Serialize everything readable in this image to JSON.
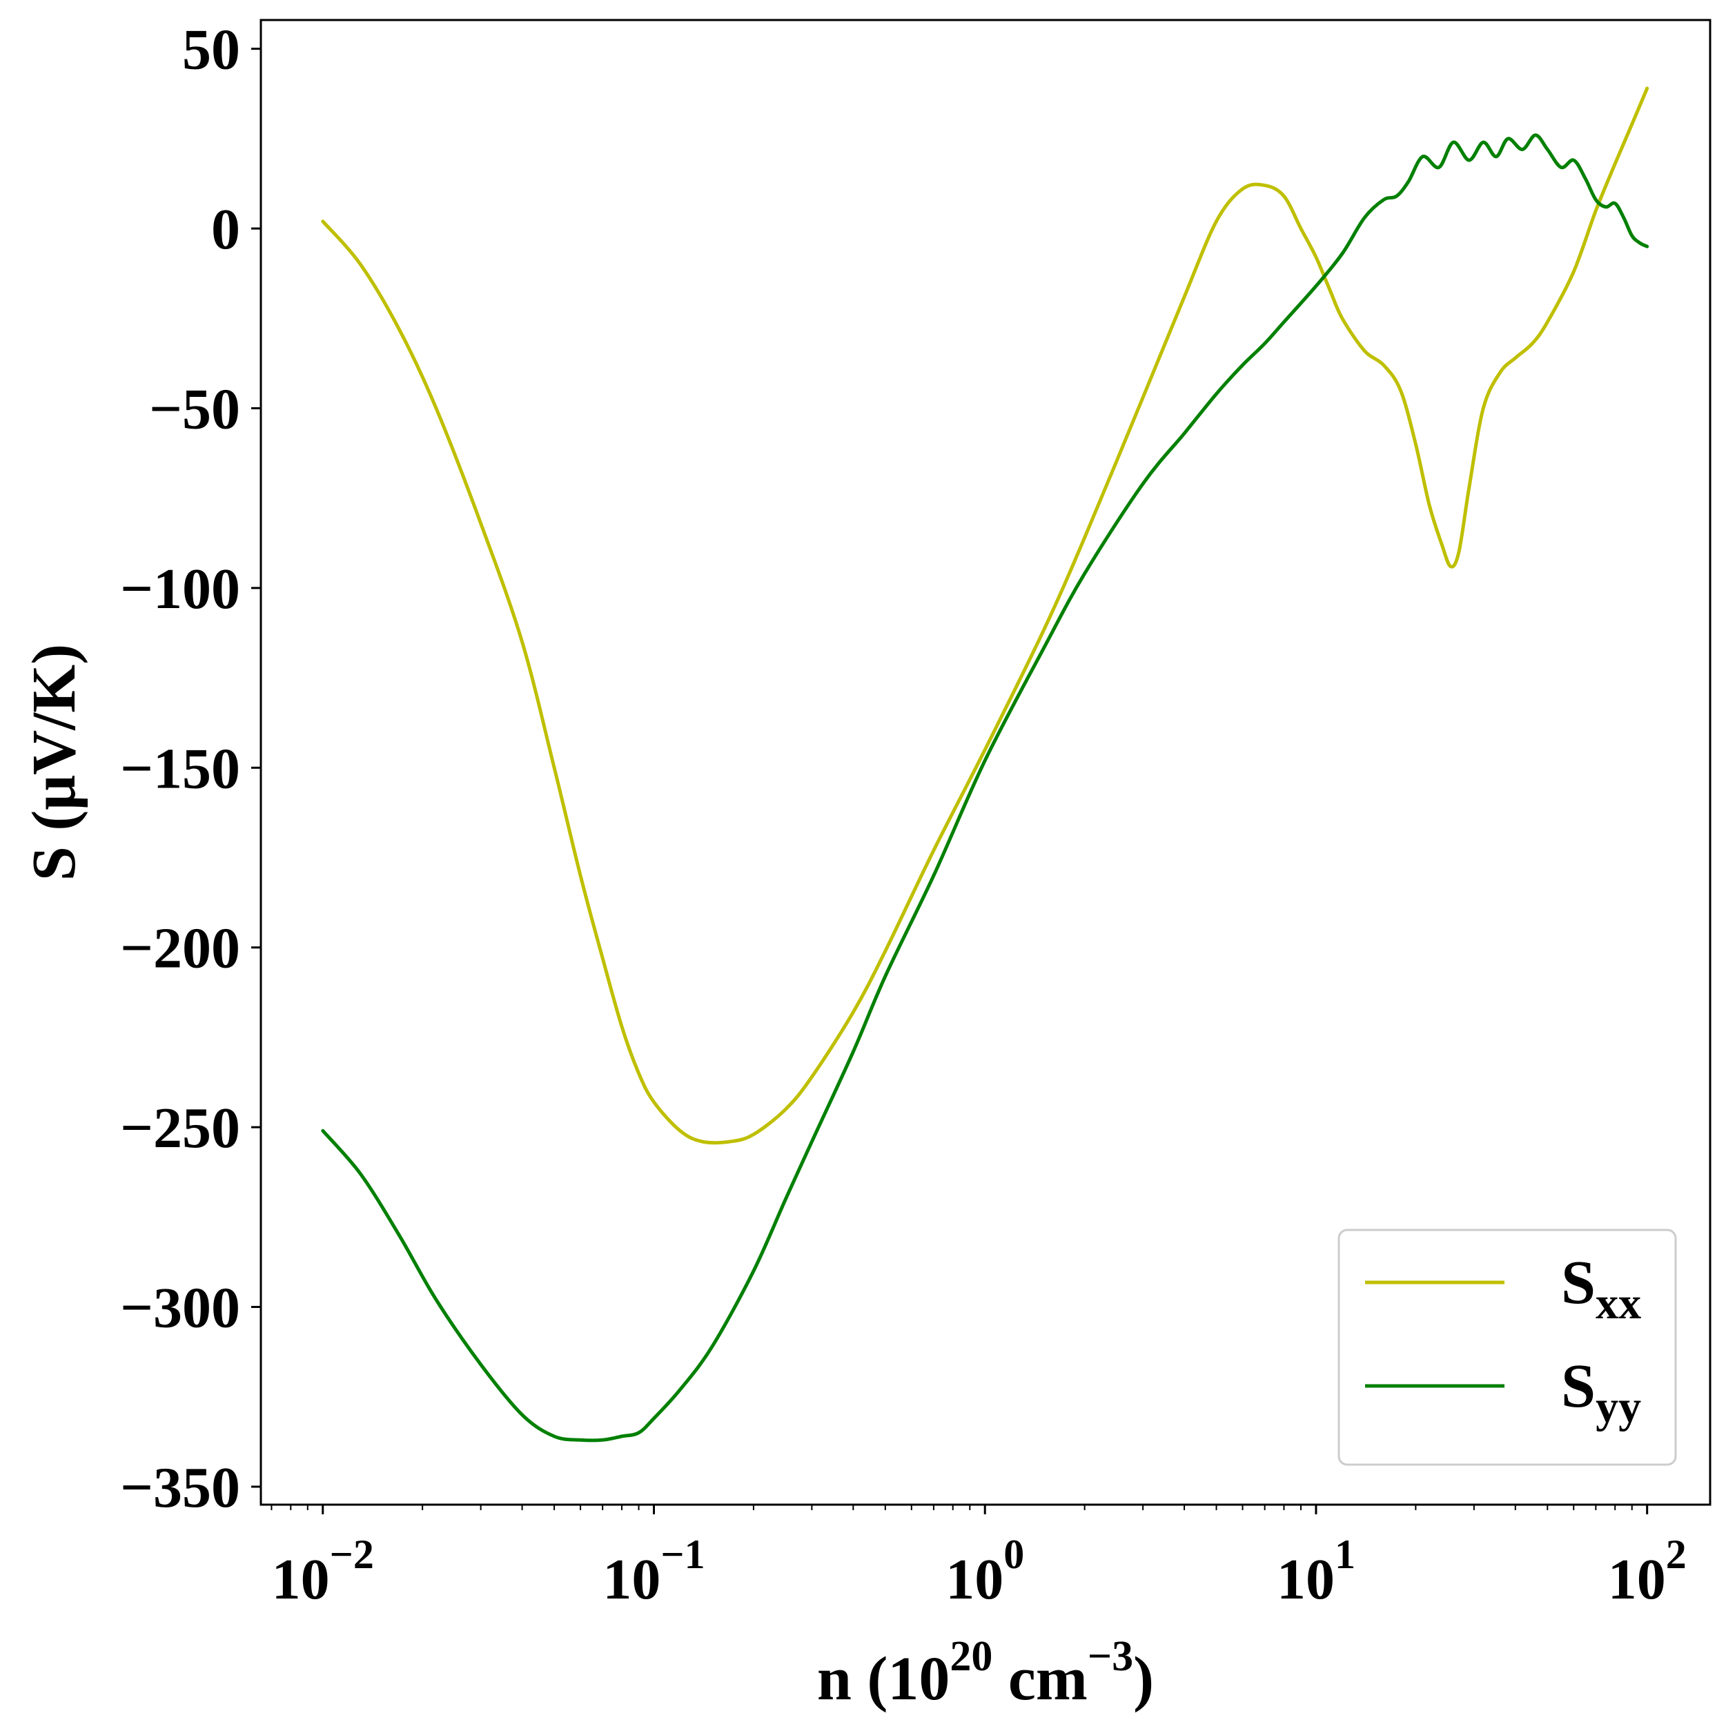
{
  "chart_data": {
    "type": "line",
    "xscale": "log",
    "xlim": [
      0.0065,
      155
    ],
    "ylim": [
      -355,
      58
    ],
    "xlabel": {
      "base": "n (10",
      "sup1": "20",
      "mid": " cm",
      "sup2": "−3",
      "end": ")"
    },
    "ylabel": "S (μV/K)",
    "grid": false,
    "legend_position": "lower-right",
    "y_ticks": [
      {
        "value": 50,
        "label": "50"
      },
      {
        "value": 0,
        "label": "0"
      },
      {
        "value": -50,
        "label": "−50"
      },
      {
        "value": -100,
        "label": "−100"
      },
      {
        "value": -150,
        "label": "−150"
      },
      {
        "value": -200,
        "label": "−200"
      },
      {
        "value": -250,
        "label": "−250"
      },
      {
        "value": -300,
        "label": "−300"
      },
      {
        "value": -350,
        "label": "−350"
      }
    ],
    "x_ticks": [
      {
        "value": 0.01,
        "base": "10",
        "exp": "−2"
      },
      {
        "value": 0.1,
        "base": "10",
        "exp": "−1"
      },
      {
        "value": 1,
        "base": "10",
        "exp": "0"
      },
      {
        "value": 10,
        "base": "10",
        "exp": "1"
      },
      {
        "value": 100,
        "base": "10",
        "exp": "2"
      }
    ],
    "series": [
      {
        "name": "S",
        "subscript": "xx",
        "color": "#bfbf00",
        "x": [
          0.01,
          0.013,
          0.017,
          0.022,
          0.03,
          0.04,
          0.05,
          0.06,
          0.07,
          0.08,
          0.09,
          0.1,
          0.12,
          0.14,
          0.17,
          0.2,
          0.25,
          0.3,
          0.4,
          0.5,
          0.7,
          1.0,
          1.5,
          2.0,
          3.0,
          4.0,
          5.0,
          6.0,
          7.0,
          8.0,
          9.0,
          10.0,
          11.0,
          12.0,
          14.0,
          16.0,
          18.0,
          20.0,
          22.0,
          24.0,
          25.5,
          27.0,
          29.0,
          32.0,
          36.0,
          40.0,
          45.0,
          50.0,
          60.0,
          70.0,
          80.0,
          90.0,
          100.0
        ],
        "y": [
          2,
          -10,
          -28,
          -50,
          -82,
          -115,
          -150,
          -180,
          -203,
          -222,
          -235,
          -243,
          -251,
          -254,
          -254,
          -252,
          -245,
          -236,
          -218,
          -201,
          -173,
          -145,
          -112,
          -86,
          -47,
          -19,
          2,
          11,
          12,
          9,
          0,
          -8,
          -17,
          -25,
          -34,
          -38,
          -45,
          -60,
          -77,
          -88,
          -94,
          -90,
          -72,
          -50,
          -40,
          -36,
          -32,
          -26,
          -12,
          5,
          18,
          29,
          39
        ]
      },
      {
        "name": "S",
        "subscript": "yy",
        "color": "#008000",
        "x": [
          0.01,
          0.013,
          0.017,
          0.022,
          0.03,
          0.04,
          0.05,
          0.06,
          0.07,
          0.08,
          0.09,
          0.1,
          0.12,
          0.15,
          0.2,
          0.25,
          0.3,
          0.4,
          0.5,
          0.7,
          1.0,
          1.5,
          2.0,
          3.0,
          4.0,
          5.0,
          6.0,
          7.0,
          8.0,
          10.0,
          12.0,
          14.0,
          16.0,
          17.5,
          19.0,
          21.0,
          23.5,
          26.0,
          29.0,
          32.0,
          35.0,
          38.0,
          42.0,
          46.0,
          50.0,
          55.0,
          60.0,
          65.0,
          70.0,
          75.0,
          80.0,
          85.0,
          90.0,
          95.0,
          100.0
        ],
        "y": [
          -251,
          -263,
          -280,
          -298,
          -316,
          -330,
          -336,
          -337,
          -337,
          -336,
          -335,
          -331,
          -323,
          -311,
          -290,
          -270,
          -254,
          -229,
          -208,
          -180,
          -148,
          -117,
          -96,
          -71,
          -57,
          -46,
          -38,
          -32,
          -26,
          -16,
          -7,
          3,
          8,
          9,
          13,
          20,
          17,
          24,
          19,
          24,
          20,
          25,
          22,
          26,
          22,
          17,
          19,
          14,
          8,
          6,
          7,
          3,
          -2,
          -4,
          -5
        ]
      }
    ]
  }
}
